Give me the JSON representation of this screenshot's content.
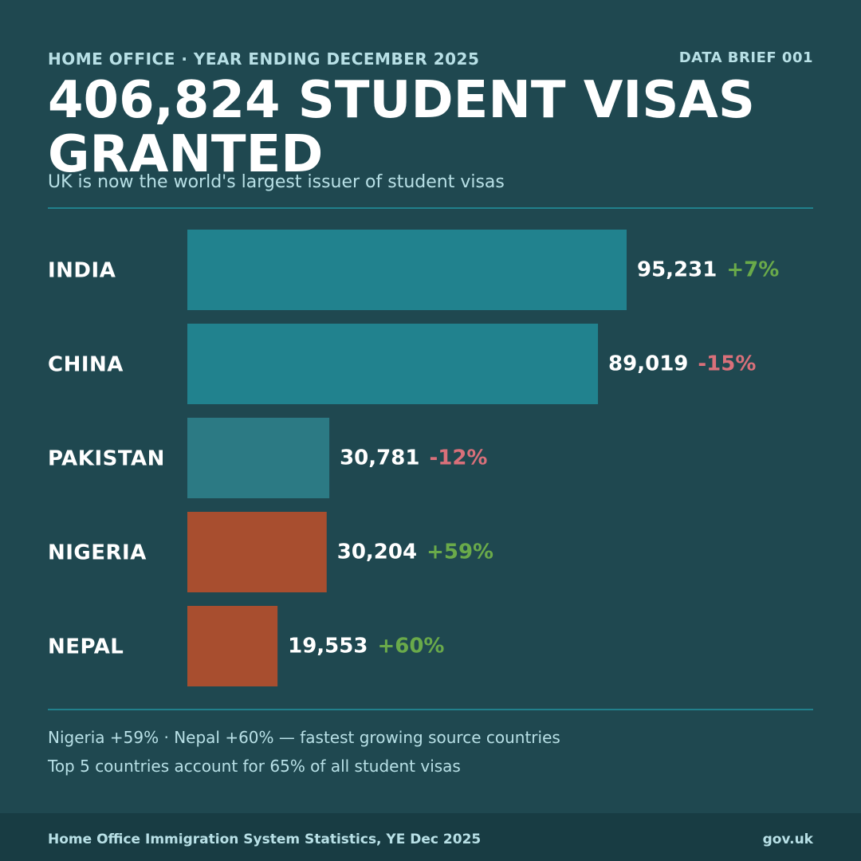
{
  "header": {
    "eyebrow": "HOME OFFICE · YEAR ENDING DECEMBER 2025",
    "brief": "DATA BRIEF 001",
    "headline": "406,824 STUDENT VISAS GRANTED",
    "subtitle": "UK is now the world's largest issuer of student visas"
  },
  "notes": {
    "line1": "Nigeria +59% · Nepal +60% — fastest growing source countries",
    "line2": "Top 5 countries account for 65% of all student visas"
  },
  "footer": {
    "source": "Home Office Immigration System Statistics, YE Dec 2025",
    "site": "gov.uk"
  },
  "colors": {
    "background": "#1f4850",
    "bar_primary": "#21828e",
    "bar_secondary": "#2c7a84",
    "bar_growth": "#a84e2f",
    "increase": "#6aaa4a",
    "decrease": "#d9707a"
  },
  "chart_data": {
    "type": "bar",
    "orientation": "horizontal",
    "categories": [
      "INDIA",
      "CHINA",
      "PAKISTAN",
      "NIGERIA",
      "NEPAL"
    ],
    "values": [
      95231,
      89019,
      30781,
      30204,
      19553
    ],
    "value_labels": [
      "95,231",
      "89,019",
      "30,781",
      "30,204",
      "19,553"
    ],
    "changes": [
      "+7%",
      "-15%",
      "-12%",
      "+59%",
      "+60%"
    ],
    "bar_colors": [
      "#21828e",
      "#21828e",
      "#2c7a84",
      "#a84e2f",
      "#a84e2f"
    ]
  }
}
